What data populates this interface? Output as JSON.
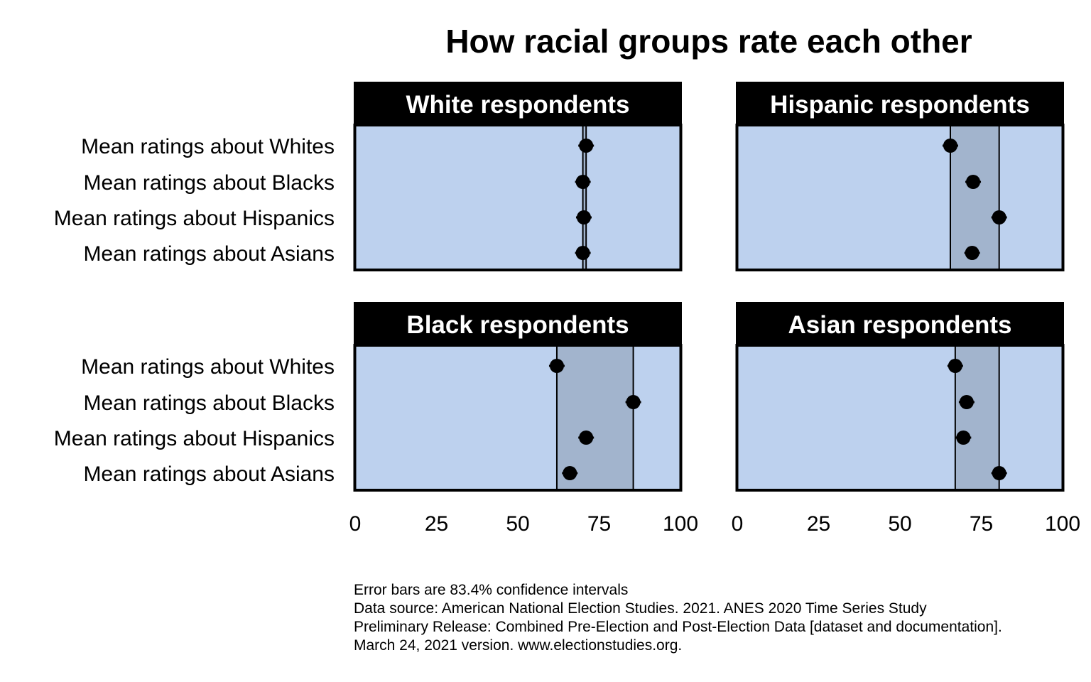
{
  "title": "How racial groups rate each other",
  "chart_data": {
    "type": "dot",
    "title": "How racial groups rate each other",
    "xlim": [
      0,
      100
    ],
    "xticks": [
      0,
      25,
      50,
      75,
      100
    ],
    "categories": [
      "Mean ratings about Whites",
      "Mean ratings about Blacks",
      "Mean ratings about Hispanics",
      "Mean ratings about Asians"
    ],
    "panels": [
      {
        "name": "White respondents",
        "values": [
          71,
          70,
          70.3,
          70
        ],
        "range": [
          70,
          71
        ]
      },
      {
        "name": "Hispanic respondents",
        "values": [
          65.5,
          72.5,
          80.5,
          72.2
        ],
        "range": [
          65.5,
          80.5
        ]
      },
      {
        "name": "Black respondents",
        "values": [
          62,
          85.5,
          71,
          66
        ],
        "range": [
          62,
          85.5
        ]
      },
      {
        "name": "Asian respondents",
        "values": [
          67,
          70.5,
          69.5,
          80.5
        ],
        "range": [
          67,
          80.5
        ]
      }
    ],
    "colors": {
      "panel_bg": "#bdd1ee",
      "range_fill": "#a2b4cd",
      "strip_bg": "#000000",
      "strip_text": "#ffffff",
      "point": "#000000"
    }
  },
  "caption": [
    "Error bars are 83.4% confidence intervals",
    "Data source: American National Election Studies. 2021. ANES 2020 Time Series Study",
    "Preliminary Release: Combined Pre-Election and Post-Election Data [dataset and documentation].",
    "March 24, 2021 version. www.electionstudies.org."
  ]
}
